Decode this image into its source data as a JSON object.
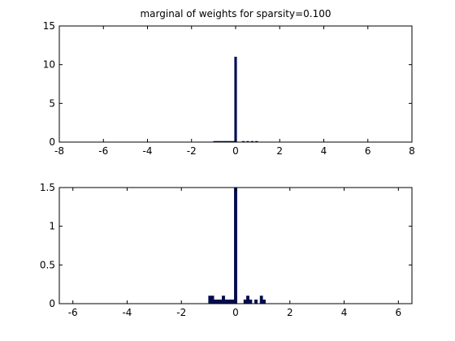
{
  "chart_data": [
    {
      "type": "bar",
      "title": "marginal of weights for sparsity=0.100",
      "xlabel": "",
      "ylabel": "",
      "xlim": [
        -8,
        8
      ],
      "ylim": [
        0,
        15
      ],
      "xticks": [
        -8,
        -6,
        -4,
        -2,
        0,
        2,
        4,
        6,
        8
      ],
      "yticks": [
        0,
        5,
        10,
        15
      ],
      "xtick_labels": [
        "-8",
        "-6",
        "-4",
        "-2",
        "0",
        "2",
        "4",
        "6",
        "8"
      ],
      "ytick_labels": [
        "0",
        "5",
        "10",
        "15"
      ],
      "bin_width": 0.1,
      "bins": [
        {
          "x": -0.95,
          "y": 0.08
        },
        {
          "x": -0.85,
          "y": 0.08
        },
        {
          "x": -0.75,
          "y": 0.08
        },
        {
          "x": -0.65,
          "y": 0.08
        },
        {
          "x": -0.55,
          "y": 0.08
        },
        {
          "x": -0.45,
          "y": 0.08
        },
        {
          "x": -0.35,
          "y": 0.08
        },
        {
          "x": -0.25,
          "y": 0.08
        },
        {
          "x": -0.15,
          "y": 0.08
        },
        {
          "x": -0.05,
          "y": 0.08
        },
        {
          "x": 0.0,
          "y": 11
        },
        {
          "x": 0.35,
          "y": 0.08
        },
        {
          "x": 0.55,
          "y": 0.08
        },
        {
          "x": 0.75,
          "y": 0.05
        },
        {
          "x": 0.95,
          "y": 0.08
        }
      ],
      "bar_color": "#000d4d",
      "grid": false,
      "box": true
    },
    {
      "type": "bar",
      "title": "",
      "xlabel": "",
      "ylabel": "",
      "xlim": [
        -6.5,
        6.5
      ],
      "ylim": [
        0,
        1.5
      ],
      "xticks": [
        -6,
        -4,
        -2,
        0,
        2,
        4,
        6
      ],
      "yticks": [
        0,
        0.5,
        1,
        1.5
      ],
      "xtick_labels": [
        "-6",
        "-4",
        "-2",
        "0",
        "2",
        "4",
        "6"
      ],
      "ytick_labels": [
        "0",
        "0.5",
        "1",
        "1.5"
      ],
      "bin_width": 0.1,
      "bins": [
        {
          "x": -0.95,
          "y": 0.1
        },
        {
          "x": -0.85,
          "y": 0.1
        },
        {
          "x": -0.75,
          "y": 0.05
        },
        {
          "x": -0.65,
          "y": 0.05
        },
        {
          "x": -0.55,
          "y": 0.05
        },
        {
          "x": -0.45,
          "y": 0.1
        },
        {
          "x": -0.35,
          "y": 0.05
        },
        {
          "x": -0.25,
          "y": 0.05
        },
        {
          "x": -0.15,
          "y": 0.05
        },
        {
          "x": -0.05,
          "y": 0.05
        },
        {
          "x": 0.0,
          "y": 1.5
        },
        {
          "x": 0.35,
          "y": 0.05
        },
        {
          "x": 0.45,
          "y": 0.1
        },
        {
          "x": 0.55,
          "y": 0.05
        },
        {
          "x": 0.75,
          "y": 0.05
        },
        {
          "x": 0.95,
          "y": 0.1
        },
        {
          "x": 1.05,
          "y": 0.05
        }
      ],
      "bar_color": "#000d4d",
      "grid": false,
      "box": true
    }
  ]
}
